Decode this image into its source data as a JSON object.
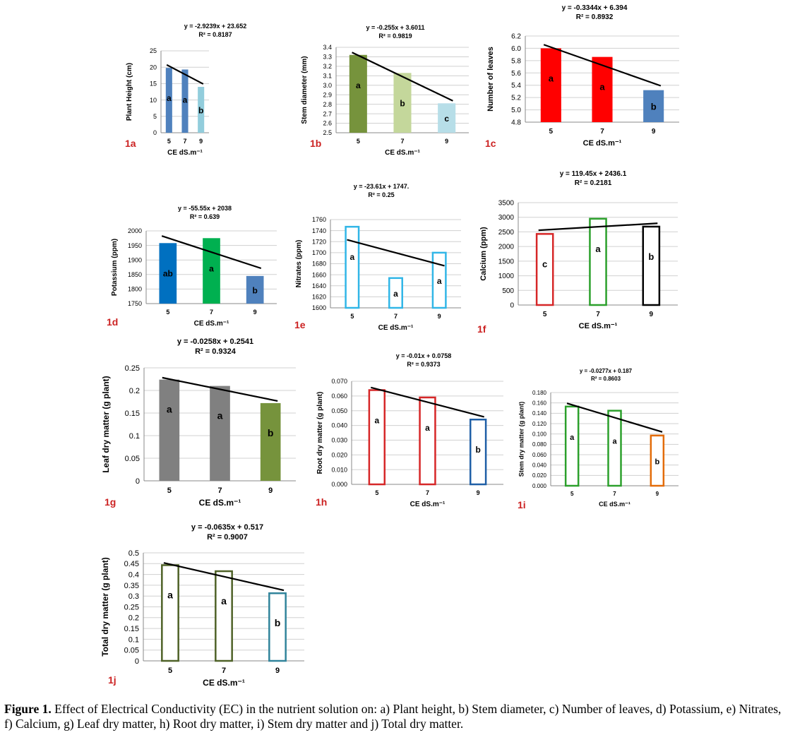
{
  "caption": {
    "label": "Figure 1.",
    "text": "Effect of Electrical Conductivity (EC) in the nutrient solution on: a) Plant height, b) Stem diameter, c) Number of leaves, d) Potassium, e) Nitrates, f) Calcium, g) Leaf dry matter, h) Root dry matter, i) Stem dry matter and j) Total dry matter."
  },
  "colors": {
    "panel_label": "#cc2222",
    "trendline": "#000000",
    "grid": "#d0d0d0"
  },
  "chart_data": [
    {
      "id": "1a",
      "panel_label": "1a",
      "type": "bar",
      "categories": [
        "5",
        "7",
        "9"
      ],
      "values": [
        19.8,
        19.3,
        14.0
      ],
      "letters": [
        "a",
        "a",
        "b"
      ],
      "bar_fill": [
        "#4f81bd",
        "#4f81bd",
        "#92cddc"
      ],
      "bar_style": "filled",
      "xlabel": "CE dS.m⁻¹",
      "ylabel": "Plant Height (cm)",
      "ylim": [
        0,
        25
      ],
      "yticks": [
        "0",
        "5",
        "10",
        "15",
        "20",
        "25"
      ],
      "equation": "y = -2.9239x + 23.652",
      "r2": "R² = 0.8187",
      "trend_slope": -2.9239,
      "trend_intercept": 23.652,
      "grid": true
    },
    {
      "id": "1b",
      "panel_label": "1b",
      "type": "bar",
      "categories": [
        "5",
        "7",
        "9"
      ],
      "values": [
        3.32,
        3.13,
        2.81
      ],
      "letters": [
        "a",
        "b",
        "c"
      ],
      "bar_fill": [
        "#76933c",
        "#c4d79b",
        "#b7dee8"
      ],
      "bar_style": "filled",
      "xlabel": "CE dS.m⁻¹",
      "ylabel": "Stem diameter (mm)",
      "ylim": [
        2.5,
        3.4
      ],
      "yticks": [
        "2.5",
        "2.6",
        "2.7",
        "2.8",
        "2.9",
        "3.0",
        "3.1",
        "3.2",
        "3.3",
        "3.4"
      ],
      "equation": "y = -0.255x + 3.6011",
      "r2": "R² = 0.9819",
      "trend_slope": -0.255,
      "trend_intercept": 3.6011,
      "grid": true
    },
    {
      "id": "1c",
      "panel_label": "1c",
      "type": "bar",
      "categories": [
        "5",
        "7",
        "9"
      ],
      "values": [
        6.0,
        5.86,
        5.32
      ],
      "letters": [
        "a",
        "a",
        "b"
      ],
      "bar_fill": [
        "#ff0000",
        "#ff0000",
        "#4f81bd"
      ],
      "bar_style": "filled",
      "xlabel": "CE dS.m⁻¹",
      "ylabel": "Number of leaves",
      "ylim": [
        4.8,
        6.2
      ],
      "yticks": [
        "4.8",
        "5.0",
        "5.2",
        "5.4",
        "5.6",
        "5.8",
        "6.0",
        "6.2"
      ],
      "equation": "y = -0.3344x + 6.394",
      "r2": "R² = 0.8932",
      "trend_slope": -0.3344,
      "trend_intercept": 6.394,
      "grid": true
    },
    {
      "id": "1d",
      "panel_label": "1d",
      "type": "bar",
      "categories": [
        "5",
        "7",
        "9"
      ],
      "values": [
        1958,
        1975,
        1845
      ],
      "letters": [
        "ab",
        "a",
        "b"
      ],
      "bar_fill": [
        "#0070c0",
        "#00b050",
        "#4f81bd"
      ],
      "bar_style": "filled",
      "xlabel": "CE dS.m⁻¹",
      "ylabel": "Potassium (ppm)",
      "ylim": [
        1750,
        2000
      ],
      "yticks": [
        "1750",
        "1800",
        "1850",
        "1900",
        "1950",
        "2000"
      ],
      "equation": "y = -55.55x + 2038",
      "r2": "R² = 0.639",
      "trend_slope": -55.55,
      "trend_intercept": 2038,
      "grid": true
    },
    {
      "id": "1e",
      "panel_label": "1e",
      "type": "bar",
      "categories": [
        "5",
        "7",
        "9"
      ],
      "values": [
        1747,
        1654,
        1700
      ],
      "letters": [
        "a",
        "a",
        "a"
      ],
      "bar_fill": [
        "#31b6e7",
        "#31b6e7",
        "#31b6e7"
      ],
      "bar_style": "outline",
      "xlabel": "CE dS.m⁻¹",
      "ylabel": "Nitrates (ppm)",
      "ylim": [
        1600,
        1760
      ],
      "yticks": [
        "1600",
        "1620",
        "1640",
        "1660",
        "1680",
        "1700",
        "1720",
        "1740",
        "1760"
      ],
      "equation": "y = -23.61x + 1747.",
      "r2": "R² = 0.25",
      "trend_slope": -23.61,
      "trend_intercept": 1747,
      "grid": true
    },
    {
      "id": "1f",
      "panel_label": "1f",
      "type": "bar",
      "categories": [
        "5",
        "7",
        "9"
      ],
      "values": [
        2430,
        2950,
        2680
      ],
      "letters": [
        "c",
        "a",
        "b"
      ],
      "bar_fill": [
        "#d62728",
        "#2ca02c",
        "#000000"
      ],
      "bar_style": "outline",
      "xlabel": "CE dS.m⁻¹",
      "ylabel": "Calcium (ppm)",
      "ylim": [
        0,
        3500
      ],
      "yticks": [
        "0",
        "500",
        "1000",
        "1500",
        "2000",
        "2500",
        "3000",
        "3500"
      ],
      "equation": "y = 119.45x + 2436.1",
      "r2": "R² = 0.2181",
      "trend_slope": 119.45,
      "trend_intercept": 2436.1,
      "grid": true
    },
    {
      "id": "1g",
      "panel_label": "1g",
      "type": "bar",
      "categories": [
        "5",
        "7",
        "9"
      ],
      "values": [
        0.224,
        0.21,
        0.172
      ],
      "letters": [
        "a",
        "a",
        "b"
      ],
      "bar_fill": [
        "#808080",
        "#808080",
        "#76933c"
      ],
      "bar_style": "filled",
      "xlabel": "CE dS.m⁻¹",
      "ylabel": "Leaf dry matter  (g plant)",
      "ylim": [
        0,
        0.25
      ],
      "yticks": [
        "0",
        "0.05",
        "0.1",
        "0.15",
        "0.2",
        "0.25"
      ],
      "equation": "y = -0.0258x + 0.2541",
      "r2": "R² = 0.9324",
      "trend_slope": -0.0258,
      "trend_intercept": 0.2541,
      "grid": true
    },
    {
      "id": "1h",
      "panel_label": "1h",
      "type": "bar",
      "categories": [
        "5",
        "7",
        "9"
      ],
      "values": [
        0.064,
        0.059,
        0.044
      ],
      "letters": [
        "a",
        "a",
        "b"
      ],
      "bar_fill": [
        "#d62728",
        "#d62728",
        "#1f5fa6"
      ],
      "bar_style": "outline",
      "xlabel": "CE dS.m⁻¹",
      "ylabel": "Root dry matter  (g plant)",
      "ylim": [
        0,
        0.07
      ],
      "yticks": [
        "0.000",
        "0.010",
        "0.020",
        "0.030",
        "0.040",
        "0.050",
        "0.060",
        "0.070"
      ],
      "equation": "y = -0.01x + 0.0758",
      "r2": "R² = 0.9373",
      "trend_slope": -0.01,
      "trend_intercept": 0.0758,
      "grid": true
    },
    {
      "id": "1i",
      "panel_label": "1i",
      "type": "bar",
      "categories": [
        "5",
        "7",
        "9"
      ],
      "values": [
        0.153,
        0.145,
        0.097
      ],
      "letters": [
        "a",
        "a",
        "b"
      ],
      "bar_fill": [
        "#2ca02c",
        "#2ca02c",
        "#e36c09"
      ],
      "bar_style": "outline",
      "xlabel": "CE dS.m⁻¹",
      "ylabel": "Stem dry matter  (g plant)",
      "ylim": [
        0,
        0.18
      ],
      "yticks": [
        "0.000",
        "0.020",
        "0.040",
        "0.060",
        "0.080",
        "0.100",
        "0.120",
        "0.140",
        "0.160",
        "0.180"
      ],
      "equation": "y = -0.0277x + 0.187",
      "r2": "R² = 0.8603",
      "trend_slope": -0.0277,
      "trend_intercept": 0.187,
      "grid": true
    },
    {
      "id": "1j",
      "panel_label": "1j",
      "type": "bar",
      "categories": [
        "5",
        "7",
        "9"
      ],
      "values": [
        0.443,
        0.415,
        0.313
      ],
      "letters": [
        "a",
        "a",
        "b"
      ],
      "bar_fill": [
        "#4f6228",
        "#4f6228",
        "#31849b"
      ],
      "bar_style": "outline",
      "xlabel": "CE dS.m⁻¹",
      "ylabel": "Total dry matter (g plant)",
      "ylim": [
        0,
        0.5
      ],
      "yticks": [
        "0",
        "0.05",
        "0.1",
        "0.15",
        "0.2",
        "0.25",
        "0.3",
        "0.35",
        "0.4",
        "0.45",
        "0.5"
      ],
      "equation": "y = -0.0635x + 0.517",
      "r2": "R² = 0.9007",
      "trend_slope": -0.0635,
      "trend_intercept": 0.517,
      "grid": true
    }
  ]
}
